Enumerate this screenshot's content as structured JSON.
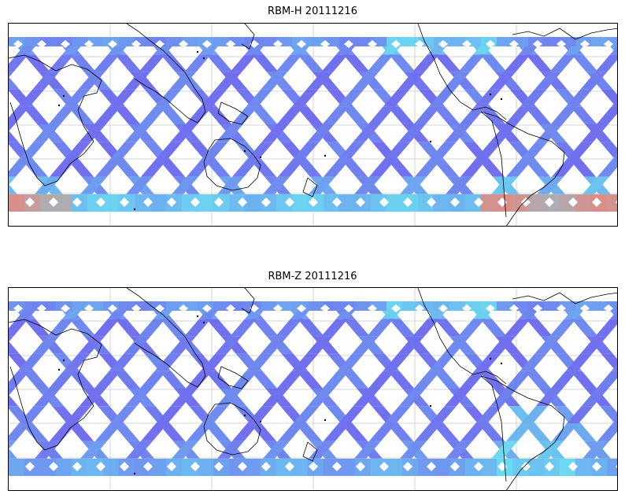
{
  "panels": [
    {
      "title": "RBM-H 20111216",
      "variable": "RBM-H",
      "date": "20111216",
      "colormap": "jet",
      "hot_south": true
    },
    {
      "title": "RBM-Z 20111216",
      "variable": "RBM-Z",
      "date": "20111216",
      "colormap": "jet",
      "hot_south": false
    }
  ],
  "map": {
    "projection": "equirectangular",
    "central_longitude": "~150E",
    "gridlines": true,
    "coastlines": true,
    "swath_pattern": "criss-crossing satellite ground tracks"
  },
  "colors": {
    "swath_low": "#6565ee",
    "swath_mid": "#5fd7f0",
    "swath_high": "#ff6a5a",
    "grid": "#c8c8c8",
    "coast": "#000000"
  }
}
